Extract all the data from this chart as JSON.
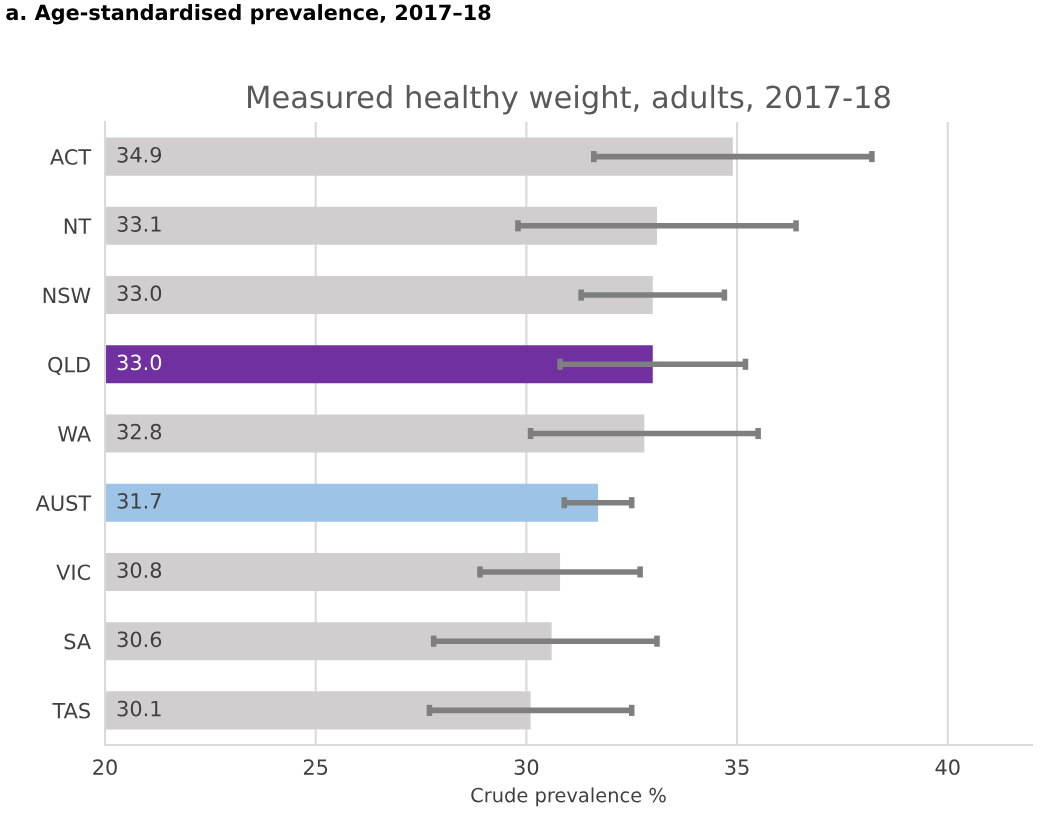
{
  "chart_data": {
    "type": "bar",
    "orientation": "horizontal",
    "title": "Measured healthy weight, adults, 2017-18",
    "annotations": [
      "a. Age-standardised prevalence, 2017–18"
    ],
    "xlabel": "Crude prevalence %",
    "categories": [
      "ACT",
      "NT",
      "NSW",
      "QLD",
      "WA",
      "AUST",
      "VIC",
      "SA",
      "TAS"
    ],
    "values": [
      34.9,
      33.1,
      33.0,
      33.0,
      32.8,
      31.7,
      30.8,
      30.6,
      30.1
    ],
    "colors": [
      "#d0cece",
      "#d0cece",
      "#d0cece",
      "#7030a0",
      "#d0cece",
      "#9dc3e6",
      "#d0cece",
      "#d0cece",
      "#d0cece"
    ],
    "errors": [
      [
        31.6,
        38.2
      ],
      [
        29.8,
        36.4
      ],
      [
        31.3,
        34.7
      ],
      [
        30.8,
        35.2
      ],
      [
        30.1,
        35.5
      ],
      [
        30.9,
        32.5
      ],
      [
        28.9,
        32.7
      ],
      [
        27.8,
        33.1
      ],
      [
        27.7,
        32.5
      ]
    ],
    "value_labels": [
      "34.9",
      "33.1",
      "33.0",
      "33.0",
      "32.8",
      "31.7",
      "30.8",
      "30.6",
      "30.1"
    ],
    "xlim": [
      20,
      42
    ],
    "xticks": [
      20,
      25,
      30,
      35,
      40
    ],
    "grid": "x"
  }
}
